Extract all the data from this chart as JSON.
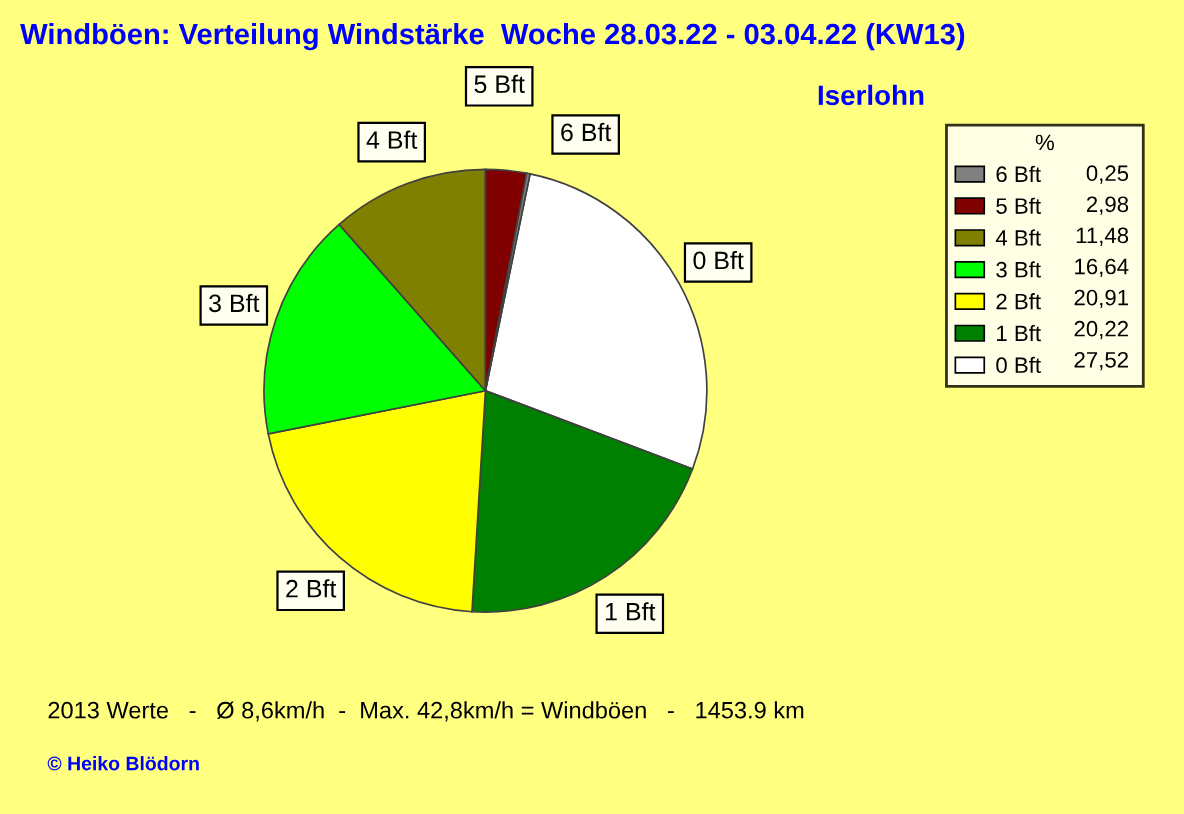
{
  "chart_data": {
    "type": "pie",
    "title": "Windböen: Verteilung Windstärke  Woche 28.03.22 - 03.04.22 (KW13)",
    "subtitle": "Iserlohn",
    "categories": [
      "6 Bft",
      "5 Bft",
      "4 Bft",
      "3 Bft",
      "2 Bft",
      "1 Bft",
      "0 Bft"
    ],
    "values": [
      0.25,
      2.98,
      11.48,
      16.64,
      20.91,
      20.22,
      27.52
    ],
    "value_labels": [
      "0,25",
      "2,98",
      "11,48",
      "16,64",
      "20,91",
      "20,22",
      "27,52"
    ],
    "colors": [
      "#808080",
      "#800000",
      "#808000",
      "#00ff00",
      "#ffff00",
      "#008000",
      "#ffffff"
    ],
    "legend_title": "%",
    "legend": "top right",
    "annotations": [
      "2013 Werte   -   Ø 8,6km/h  -  Max. 42,8km/h = Windböen   -   1453.9 km",
      "© Heiko Blödorn"
    ]
  }
}
